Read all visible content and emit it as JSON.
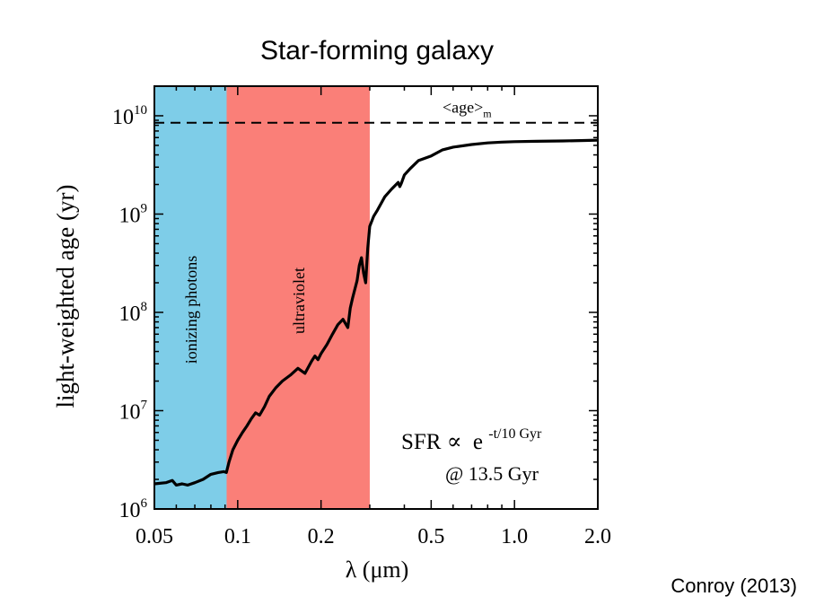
{
  "chart_data": {
    "type": "line",
    "title": "Star-forming galaxy",
    "xlabel": "λ (μm)",
    "ylabel": "light-weighted age (yr)",
    "xscale": "log",
    "yscale": "log",
    "xlim": [
      0.05,
      2.0
    ],
    "ylim": [
      1000000,
      20000000000
    ],
    "x_ticks": [
      {
        "value": 0.05,
        "label": "0.05"
      },
      {
        "value": 0.1,
        "label": "0.1"
      },
      {
        "value": 0.2,
        "label": "0.2"
      },
      {
        "value": 0.5,
        "label": "0.5"
      },
      {
        "value": 1.0,
        "label": "1.0"
      },
      {
        "value": 2.0,
        "label": "2.0"
      }
    ],
    "y_ticks": [
      {
        "value": 1000000,
        "base": "10",
        "exp": "6"
      },
      {
        "value": 10000000,
        "base": "10",
        "exp": "7"
      },
      {
        "value": 100000000,
        "base": "10",
        "exp": "8"
      },
      {
        "value": 1000000000,
        "base": "10",
        "exp": "9"
      },
      {
        "value": 10000000000,
        "base": "10",
        "exp": "10"
      }
    ],
    "regions": [
      {
        "label": "ionizing photons",
        "x_range": [
          0.05,
          0.0912
        ],
        "color": "#7ecde8"
      },
      {
        "label": "ultraviolet",
        "x_range": [
          0.0912,
          0.3
        ],
        "color": "#fa7f78"
      }
    ],
    "reference_line": {
      "label": "<age>",
      "subscript": "m",
      "y": 8500000000,
      "style": "dashed"
    },
    "series": [
      {
        "color": "#000000",
        "x": [
          0.05,
          0.055,
          0.058,
          0.06,
          0.063,
          0.066,
          0.07,
          0.075,
          0.08,
          0.085,
          0.089,
          0.091,
          0.093,
          0.096,
          0.1,
          0.104,
          0.108,
          0.112,
          0.116,
          0.12,
          0.125,
          0.13,
          0.137,
          0.145,
          0.155,
          0.165,
          0.175,
          0.185,
          0.19,
          0.195,
          0.2,
          0.21,
          0.22,
          0.23,
          0.24,
          0.25,
          0.255,
          0.26,
          0.27,
          0.275,
          0.28,
          0.285,
          0.29,
          0.295,
          0.3,
          0.31,
          0.32,
          0.34,
          0.36,
          0.38,
          0.385,
          0.39,
          0.4,
          0.42,
          0.45,
          0.5,
          0.55,
          0.6,
          0.7,
          0.8,
          0.9,
          1.0,
          1.2,
          1.5,
          1.8,
          2.0
        ],
        "y": [
          1800000,
          1850000,
          1950000,
          1750000,
          1800000,
          1750000,
          1850000,
          2000000,
          2250000,
          2350000,
          2400000,
          2350000,
          3000000,
          4000000,
          5000000,
          6000000,
          7000000,
          8300000,
          9500000,
          9000000,
          11000000,
          14000000,
          17000000,
          20000000,
          23000000,
          27000000,
          24000000,
          32000000,
          36000000,
          33000000,
          38000000,
          47000000,
          60000000,
          75000000,
          85000000,
          70000000,
          110000000,
          140000000,
          210000000,
          300000000,
          360000000,
          250000000,
          200000000,
          450000000,
          750000000,
          950000000,
          1100000000,
          1500000000,
          1800000000,
          2100000000,
          1900000000,
          2050000000,
          2500000000,
          2900000000,
          3500000000,
          3900000000,
          4500000000,
          4800000000,
          5100000000,
          5300000000,
          5400000000,
          5450000000,
          5500000000,
          5550000000,
          5600000000,
          5650000000
        ]
      }
    ],
    "annotations": {
      "sfr_prefix": "SFR",
      "sfr_propto": "∝",
      "sfr_base": "e",
      "sfr_exponent": "-t/10 Gyr",
      "epoch": "@ 13.5 Gyr"
    }
  },
  "credit": "Conroy (2013)"
}
